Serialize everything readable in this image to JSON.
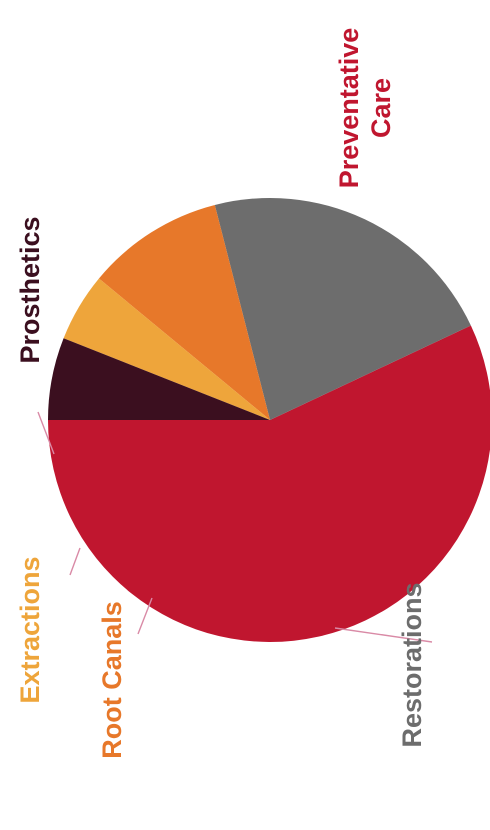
{
  "chart_data": {
    "type": "pie",
    "title": "",
    "orientation": "rotated-90-counterclockwise",
    "legend": "none",
    "slices": [
      {
        "label": "Preventative Care",
        "lines": [
          "Preventative",
          "Care"
        ],
        "value": 57,
        "color": "#c0162f"
      },
      {
        "label": "Restorations",
        "lines": [
          "Restorations"
        ],
        "value": 22,
        "color": "#6d6d6d"
      },
      {
        "label": "Root Canals",
        "lines": [
          "Root Canals"
        ],
        "value": 10,
        "color": "#e7782a"
      },
      {
        "label": "Extractions",
        "lines": [
          "Extractions"
        ],
        "value": 5,
        "color": "#eea53b"
      },
      {
        "label": "Prosthetics",
        "lines": [
          "Prosthetics"
        ],
        "value": 6,
        "color": "#3b0f1f"
      }
    ]
  }
}
